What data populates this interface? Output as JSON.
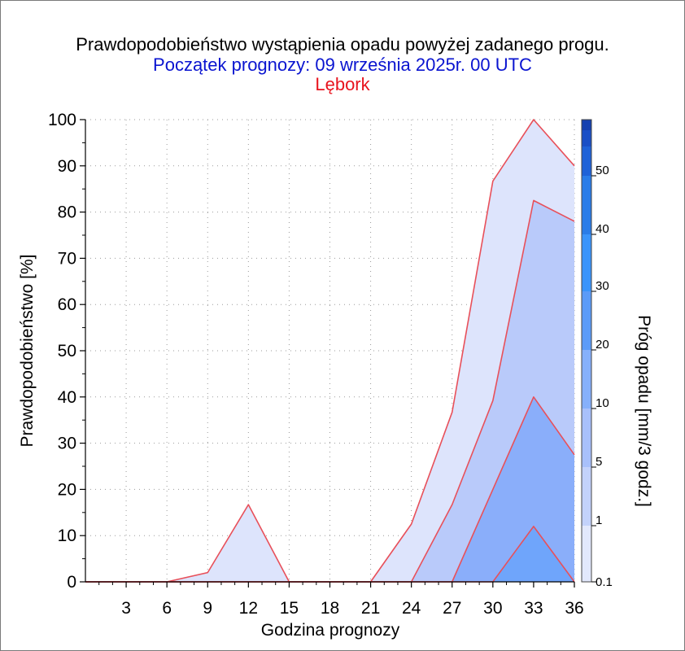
{
  "title": "Prawdopodobieństwo wystąpienia opadu powyżej zadanego progu.",
  "subtitle": "Początek prognozy: 09 września 2025r. 00 UTC",
  "location": "Lębork",
  "colors": {
    "title": "#000000",
    "subtitle": "#0a14d0",
    "location": "#e8141e",
    "area_outline": "#e8505a"
  },
  "chart_data": {
    "type": "area",
    "title": "Prawdopodobieństwo wystąpienia opadu powyżej zadanego progu.",
    "xlabel": "Godzina prognozy",
    "ylabel": "Prawdopodobieństwo [%]",
    "xlim": [
      0,
      36
    ],
    "ylim": [
      0,
      100
    ],
    "x_ticks": [
      3,
      6,
      9,
      12,
      15,
      18,
      21,
      24,
      27,
      30,
      33,
      36
    ],
    "y_ticks": [
      0,
      10,
      20,
      30,
      40,
      50,
      60,
      70,
      80,
      90,
      100
    ],
    "grid": true,
    "x": [
      0,
      3,
      6,
      9,
      12,
      15,
      18,
      21,
      24,
      27,
      30,
      33,
      36
    ],
    "series": [
      {
        "name": "0.1",
        "color": "#dde4fc",
        "values": [
          0,
          0,
          0,
          2,
          16.7,
          0,
          0,
          0,
          12.5,
          36.7,
          86.7,
          100,
          90
        ]
      },
      {
        "name": "1",
        "color": "#b9cafa",
        "values": [
          0,
          0,
          0,
          0,
          0,
          0,
          0,
          0,
          0,
          16.7,
          39.2,
          82.5,
          78
        ]
      },
      {
        "name": "5",
        "color": "#8aaefa",
        "values": [
          0,
          0,
          0,
          0,
          0,
          0,
          0,
          0,
          0,
          0,
          20,
          40,
          27.5
        ]
      },
      {
        "name": "10",
        "color": "#6fa5fb",
        "values": [
          0,
          0,
          0,
          0,
          0,
          0,
          0,
          0,
          0,
          0,
          0,
          12,
          0
        ]
      }
    ],
    "colorbar": {
      "label": "Próg opadu [mm/3 godz.]",
      "tick_labels": [
        "0.1",
        "1",
        "5",
        "10",
        "20",
        "30",
        "40",
        "50"
      ],
      "band_colors": [
        "#e2e8fc",
        "#c3d2fb",
        "#a8c0fb",
        "#86b0fb",
        "#5b9bf8",
        "#3a94fb",
        "#2a7ce8",
        "#1f62d8",
        "#1a4fc6",
        "#1440b0"
      ]
    }
  }
}
